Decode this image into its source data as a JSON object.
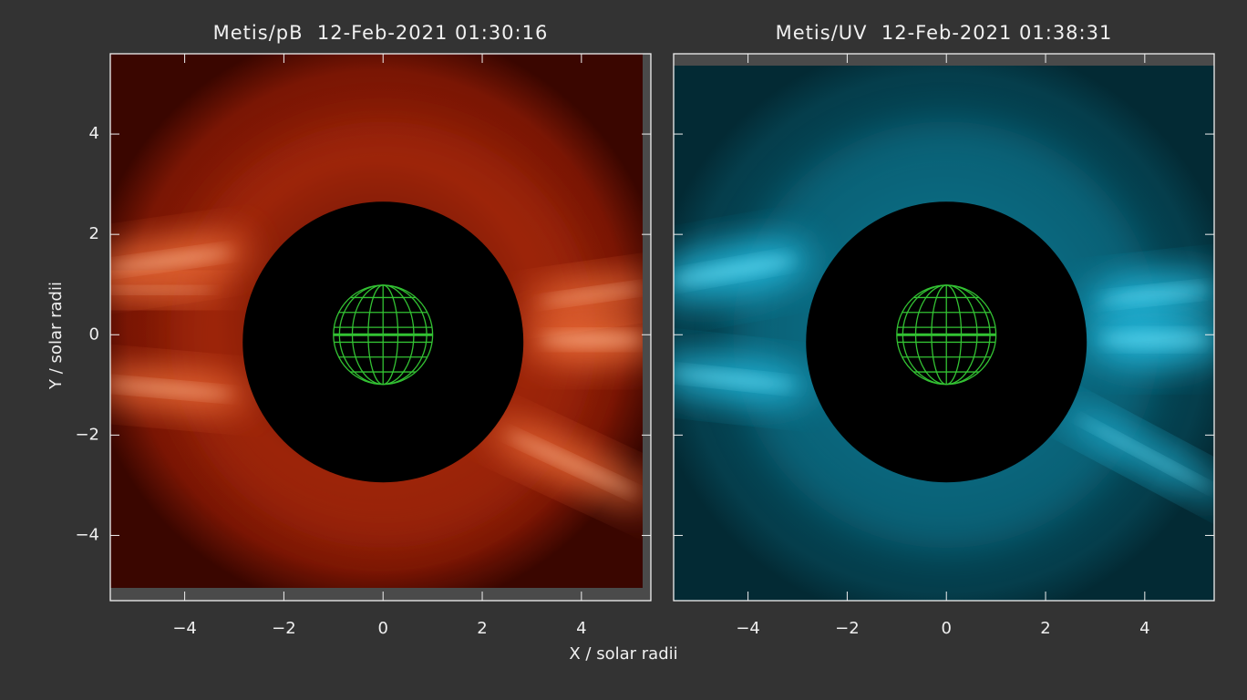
{
  "chart_data": [
    {
      "type": "image",
      "title": "Metis/pB  12-Feb-2021 01:30:16",
      "xlabel": "X / solar radii",
      "ylabel": "Y / solar radii",
      "xlim": [
        -5.5,
        5.4
      ],
      "ylim": [
        -5.3,
        5.6
      ],
      "xticks": [
        {
          "value": -4,
          "label": "−4"
        },
        {
          "value": -2,
          "label": "−2"
        },
        0,
        2,
        4
      ],
      "yticks": [
        {
          "value": -4,
          "label": "−4"
        },
        {
          "value": -2,
          "label": "−2"
        },
        0,
        2,
        4
      ]
    },
    {
      "type": "image",
      "title": "Metis/UV  12-Feb-2021 01:38:31",
      "xlim": [
        -5.5,
        5.4
      ],
      "ylim": [
        -5.3,
        5.6
      ],
      "xticks": [
        {
          "value": -4,
          "label": "−4"
        },
        {
          "value": -2,
          "label": "−2"
        },
        0,
        2,
        4
      ],
      "yticks": [
        -4,
        -2,
        0,
        2,
        4
      ]
    }
  ]
}
